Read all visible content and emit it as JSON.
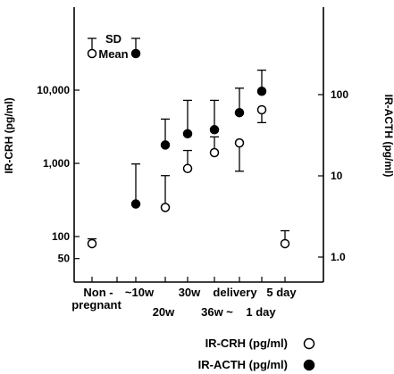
{
  "chart_data": {
    "type": "scatter",
    "left_axis": {
      "label": "IR-CRH (pg/ml)",
      "scale": "log",
      "range": [
        30,
        100000
      ],
      "ticks": [
        "10,000",
        "1,000",
        "100",
        "50"
      ]
    },
    "right_axis": {
      "label": "IR-ACTH (pg/ml)",
      "scale": "log",
      "range": [
        0.6,
        1000
      ],
      "ticks": [
        "100",
        "10",
        "1.0"
      ]
    },
    "x_labels": [
      {
        "text": "Non -",
        "row": 1
      },
      {
        "text": "pregnant",
        "row": 2
      },
      {
        "text": "~10w",
        "row": 1
      },
      {
        "text": "30w",
        "row": 1
      },
      {
        "text": "delivery",
        "row": 1
      },
      {
        "text": "5 day",
        "row": 1
      },
      {
        "text": "20w",
        "row": 2
      },
      {
        "text": "36w ~",
        "row": 2
      },
      {
        "text": "1 day",
        "row": 2
      }
    ],
    "inset_key": {
      "sd": "SD",
      "mean": "Mean"
    },
    "legend": {
      "placement": "bottom-right",
      "entries": [
        {
          "label": "IR-CRH (pg/ml)",
          "marker": "open-circle"
        },
        {
          "label": "IR-ACTH (pg/ml)",
          "marker": "filled-circle"
        }
      ]
    },
    "series": [
      {
        "name": "IR-CRH (pg/ml)",
        "axis": "left",
        "marker": "open-circle",
        "points": [
          {
            "x": "Non-pregnant",
            "y": 80,
            "sd_dir": "up",
            "sd_to": 93
          },
          {
            "x": "20w",
            "y": 250,
            "sd_dir": "up",
            "sd_to": 680
          },
          {
            "x": "30w",
            "y": 850,
            "sd_dir": "up",
            "sd_to": 1500
          },
          {
            "x": "36w ~",
            "y": 1400,
            "sd_dir": "up",
            "sd_to": 2300
          },
          {
            "x": "delivery",
            "y": 1900,
            "sd_dir": "down",
            "sd_to": 780
          },
          {
            "x": "1 day",
            "y": 5400,
            "sd_dir": "down",
            "sd_to": 3600
          },
          {
            "x": "5 day",
            "y": 80,
            "sd_dir": "up",
            "sd_to": 120
          }
        ]
      },
      {
        "name": "IR-ACTH (pg/ml)",
        "axis": "right",
        "marker": "filled-circle",
        "points": [
          {
            "x": "~10w",
            "y": 4.5,
            "sd_dir": "up",
            "sd_to": 14
          },
          {
            "x": "20w",
            "y": 24,
            "sd_dir": "up",
            "sd_to": 50
          },
          {
            "x": "30w",
            "y": 33,
            "sd_dir": "up",
            "sd_to": 85
          },
          {
            "x": "36w ~",
            "y": 37,
            "sd_dir": "up",
            "sd_to": 85
          },
          {
            "x": "delivery",
            "y": 60,
            "sd_dir": "up",
            "sd_to": 120
          },
          {
            "x": "1 day",
            "y": 110,
            "sd_dir": "up",
            "sd_to": 200
          }
        ]
      }
    ],
    "key_points": [
      {
        "marker": "open-circle",
        "label": "SD"
      },
      {
        "marker": "filled-circle",
        "label": "Mean"
      }
    ]
  }
}
